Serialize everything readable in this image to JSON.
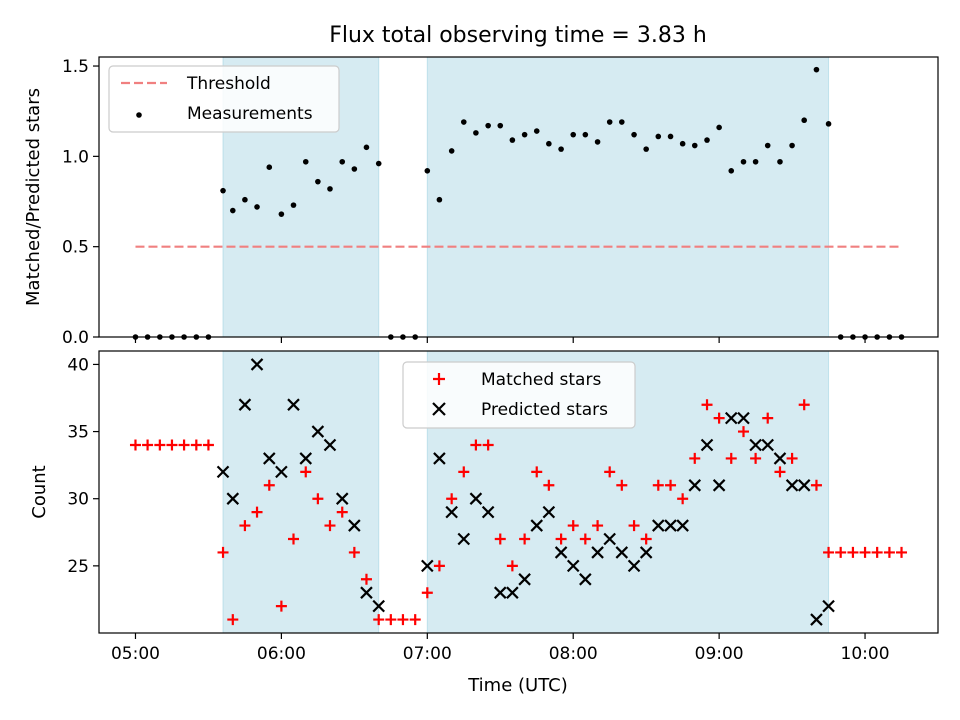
{
  "chart_data": [
    {
      "type": "scatter",
      "title": "Flux total observing time = 3.83 h",
      "ylabel": "Matched/Predicted stars",
      "xlabel": "",
      "x_unit": "hours UTC",
      "xlim": [
        4.75,
        10.5
      ],
      "ylim": [
        0,
        1.55
      ],
      "yticks": [
        "0.0",
        "0.5",
        "1.0",
        "1.5"
      ],
      "grid": false,
      "legend": {
        "position": "upper-left",
        "entries": [
          "Threshold",
          "Measurements"
        ]
      },
      "shaded_intervals": [
        [
          5.6,
          6.667
        ],
        [
          7.0,
          9.75
        ]
      ],
      "series": [
        {
          "name": "Threshold",
          "style": "dashed-line",
          "color": "#f08080",
          "x": [
            5.0,
            10.25
          ],
          "y": [
            0.5,
            0.5
          ]
        },
        {
          "name": "Measurements",
          "style": "dot",
          "color": "#000000",
          "x": [
            5.0,
            5.083,
            5.167,
            5.25,
            5.333,
            5.417,
            5.5,
            5.6,
            5.667,
            5.75,
            5.833,
            5.917,
            6.0,
            6.083,
            6.167,
            6.25,
            6.333,
            6.417,
            6.5,
            6.583,
            6.667,
            6.75,
            6.833,
            6.917,
            7.0,
            7.083,
            7.167,
            7.25,
            7.333,
            7.417,
            7.5,
            7.583,
            7.667,
            7.75,
            7.833,
            7.917,
            8.0,
            8.083,
            8.167,
            8.25,
            8.333,
            8.417,
            8.5,
            8.583,
            8.667,
            8.75,
            8.833,
            8.917,
            9.0,
            9.083,
            9.167,
            9.25,
            9.333,
            9.417,
            9.5,
            9.583,
            9.667,
            9.75,
            9.833,
            9.917,
            10.0,
            10.083,
            10.167,
            10.25
          ],
          "y": [
            0,
            0,
            0,
            0,
            0,
            0,
            0,
            0.81,
            0.7,
            0.76,
            0.72,
            0.94,
            0.68,
            0.73,
            0.97,
            0.86,
            0.82,
            0.97,
            0.93,
            1.05,
            0.96,
            0,
            0,
            0,
            0.92,
            0.76,
            1.03,
            1.19,
            1.13,
            1.17,
            1.17,
            1.09,
            1.12,
            1.14,
            1.07,
            1.04,
            1.12,
            1.12,
            1.08,
            1.19,
            1.19,
            1.12,
            1.04,
            1.11,
            1.11,
            1.07,
            1.06,
            1.09,
            1.16,
            0.92,
            0.97,
            0.97,
            1.06,
            0.97,
            1.06,
            1.2,
            1.48,
            1.18,
            0,
            0,
            0,
            0,
            0,
            0
          ]
        }
      ]
    },
    {
      "type": "scatter",
      "title": "",
      "xlabel": "Time (UTC)",
      "ylabel": "Count",
      "x_unit": "hours UTC",
      "xlim": [
        4.75,
        10.5
      ],
      "ylim": [
        20,
        41
      ],
      "xticks": [
        "05:00",
        "06:00",
        "07:00",
        "08:00",
        "09:00",
        "10:00"
      ],
      "yticks": [
        "25",
        "30",
        "35",
        "40"
      ],
      "grid": false,
      "legend": {
        "position": "upper-center",
        "entries": [
          "Matched stars",
          "Predicted stars"
        ]
      },
      "shaded_intervals": [
        [
          5.6,
          6.667
        ],
        [
          7.0,
          9.75
        ]
      ],
      "series": [
        {
          "name": "Matched stars",
          "marker": "plus",
          "color": "#ff0000",
          "x": [
            5.0,
            5.083,
            5.167,
            5.25,
            5.333,
            5.417,
            5.5,
            5.6,
            5.667,
            5.75,
            5.833,
            5.917,
            6.0,
            6.083,
            6.167,
            6.25,
            6.333,
            6.417,
            6.5,
            6.583,
            6.667,
            6.75,
            6.833,
            6.917,
            7.0,
            7.083,
            7.167,
            7.25,
            7.333,
            7.417,
            7.5,
            7.583,
            7.667,
            7.75,
            7.833,
            7.917,
            8.0,
            8.083,
            8.167,
            8.25,
            8.333,
            8.417,
            8.5,
            8.583,
            8.667,
            8.75,
            8.833,
            8.917,
            9.0,
            9.083,
            9.167,
            9.25,
            9.333,
            9.417,
            9.5,
            9.583,
            9.667,
            9.75,
            9.833,
            9.917,
            10.0,
            10.083,
            10.167,
            10.25
          ],
          "y": [
            34,
            34,
            34,
            34,
            34,
            34,
            34,
            26,
            21,
            28,
            29,
            31,
            22,
            27,
            32,
            30,
            28,
            29,
            26,
            24,
            21,
            21,
            21,
            21,
            23,
            25,
            30,
            32,
            34,
            34,
            27,
            25,
            27,
            32,
            31,
            27,
            28,
            27,
            28,
            32,
            31,
            28,
            27,
            31,
            31,
            30,
            33,
            37,
            36,
            33,
            35,
            33,
            36,
            32,
            33,
            37,
            31,
            26,
            26,
            26,
            26,
            26,
            26,
            26
          ]
        },
        {
          "name": "Predicted stars",
          "marker": "x",
          "color": "#000000",
          "x": [
            5.6,
            5.667,
            5.75,
            5.833,
            5.917,
            6.0,
            6.083,
            6.167,
            6.25,
            6.333,
            6.417,
            6.5,
            6.583,
            6.667,
            7.0,
            7.083,
            7.167,
            7.25,
            7.333,
            7.417,
            7.5,
            7.583,
            7.667,
            7.75,
            7.833,
            7.917,
            8.0,
            8.083,
            8.167,
            8.25,
            8.333,
            8.417,
            8.5,
            8.583,
            8.667,
            8.75,
            8.833,
            8.917,
            9.0,
            9.083,
            9.167,
            9.25,
            9.333,
            9.417,
            9.5,
            9.583,
            9.667,
            9.75
          ],
          "y": [
            32,
            30,
            37,
            40,
            33,
            32,
            37,
            33,
            35,
            34,
            30,
            28,
            23,
            22,
            25,
            33,
            29,
            27,
            30,
            29,
            23,
            23,
            24,
            28,
            29,
            26,
            25,
            24,
            26,
            27,
            26,
            25,
            26,
            28,
            28,
            28,
            31,
            34,
            31,
            36,
            36,
            34,
            34,
            33,
            31,
            31,
            21,
            22
          ]
        }
      ]
    }
  ]
}
